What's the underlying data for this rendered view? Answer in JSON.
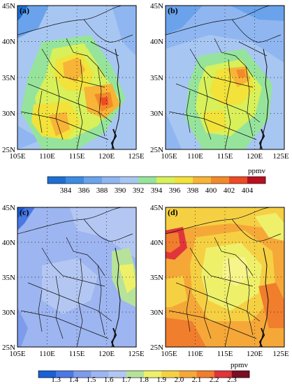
{
  "figure": {
    "lon_ticks": [
      "105E",
      "110E",
      "115E",
      "120E",
      "125E"
    ],
    "lat_ticks": [
      "25N",
      "30N",
      "35N",
      "40N",
      "45N"
    ],
    "panels": [
      {
        "label": "(a)",
        "scheme": "co2",
        "pattern": "a"
      },
      {
        "label": "(b)",
        "scheme": "co2",
        "pattern": "b"
      },
      {
        "label": "(c)",
        "scheme": "ch4",
        "pattern": "c"
      },
      {
        "label": "(d)",
        "scheme": "ch4",
        "pattern": "d"
      }
    ],
    "colorbars": [
      {
        "unit": "ppmv",
        "ticks": [
          "384",
          "386",
          "388",
          "390",
          "392",
          "394",
          "396",
          "398",
          "400",
          "402",
          "404"
        ],
        "colors": [
          "#1e6fd2",
          "#3d8be3",
          "#6aa3ec",
          "#8fb6f0",
          "#a8c6f2",
          "#96e49b",
          "#d8f05a",
          "#f2e23a",
          "#f7b437",
          "#f38a2a",
          "#ee4a25",
          "#b80f1e"
        ]
      },
      {
        "unit": "ppmv",
        "ticks": [
          "1.3",
          "1.4",
          "1.5",
          "1.6",
          "1.7",
          "1.8",
          "1.9",
          "2.0",
          "2.1",
          "2.2",
          "2.3"
        ],
        "colors": [
          "#1a5fd6",
          "#4a78e5",
          "#7d9cec",
          "#9db5f0",
          "#b4c7f3",
          "#b7e29a",
          "#eef06a",
          "#f6d043",
          "#f5a838",
          "#f07e2d",
          "#e0353a",
          "#7a0f24"
        ]
      }
    ]
  }
}
